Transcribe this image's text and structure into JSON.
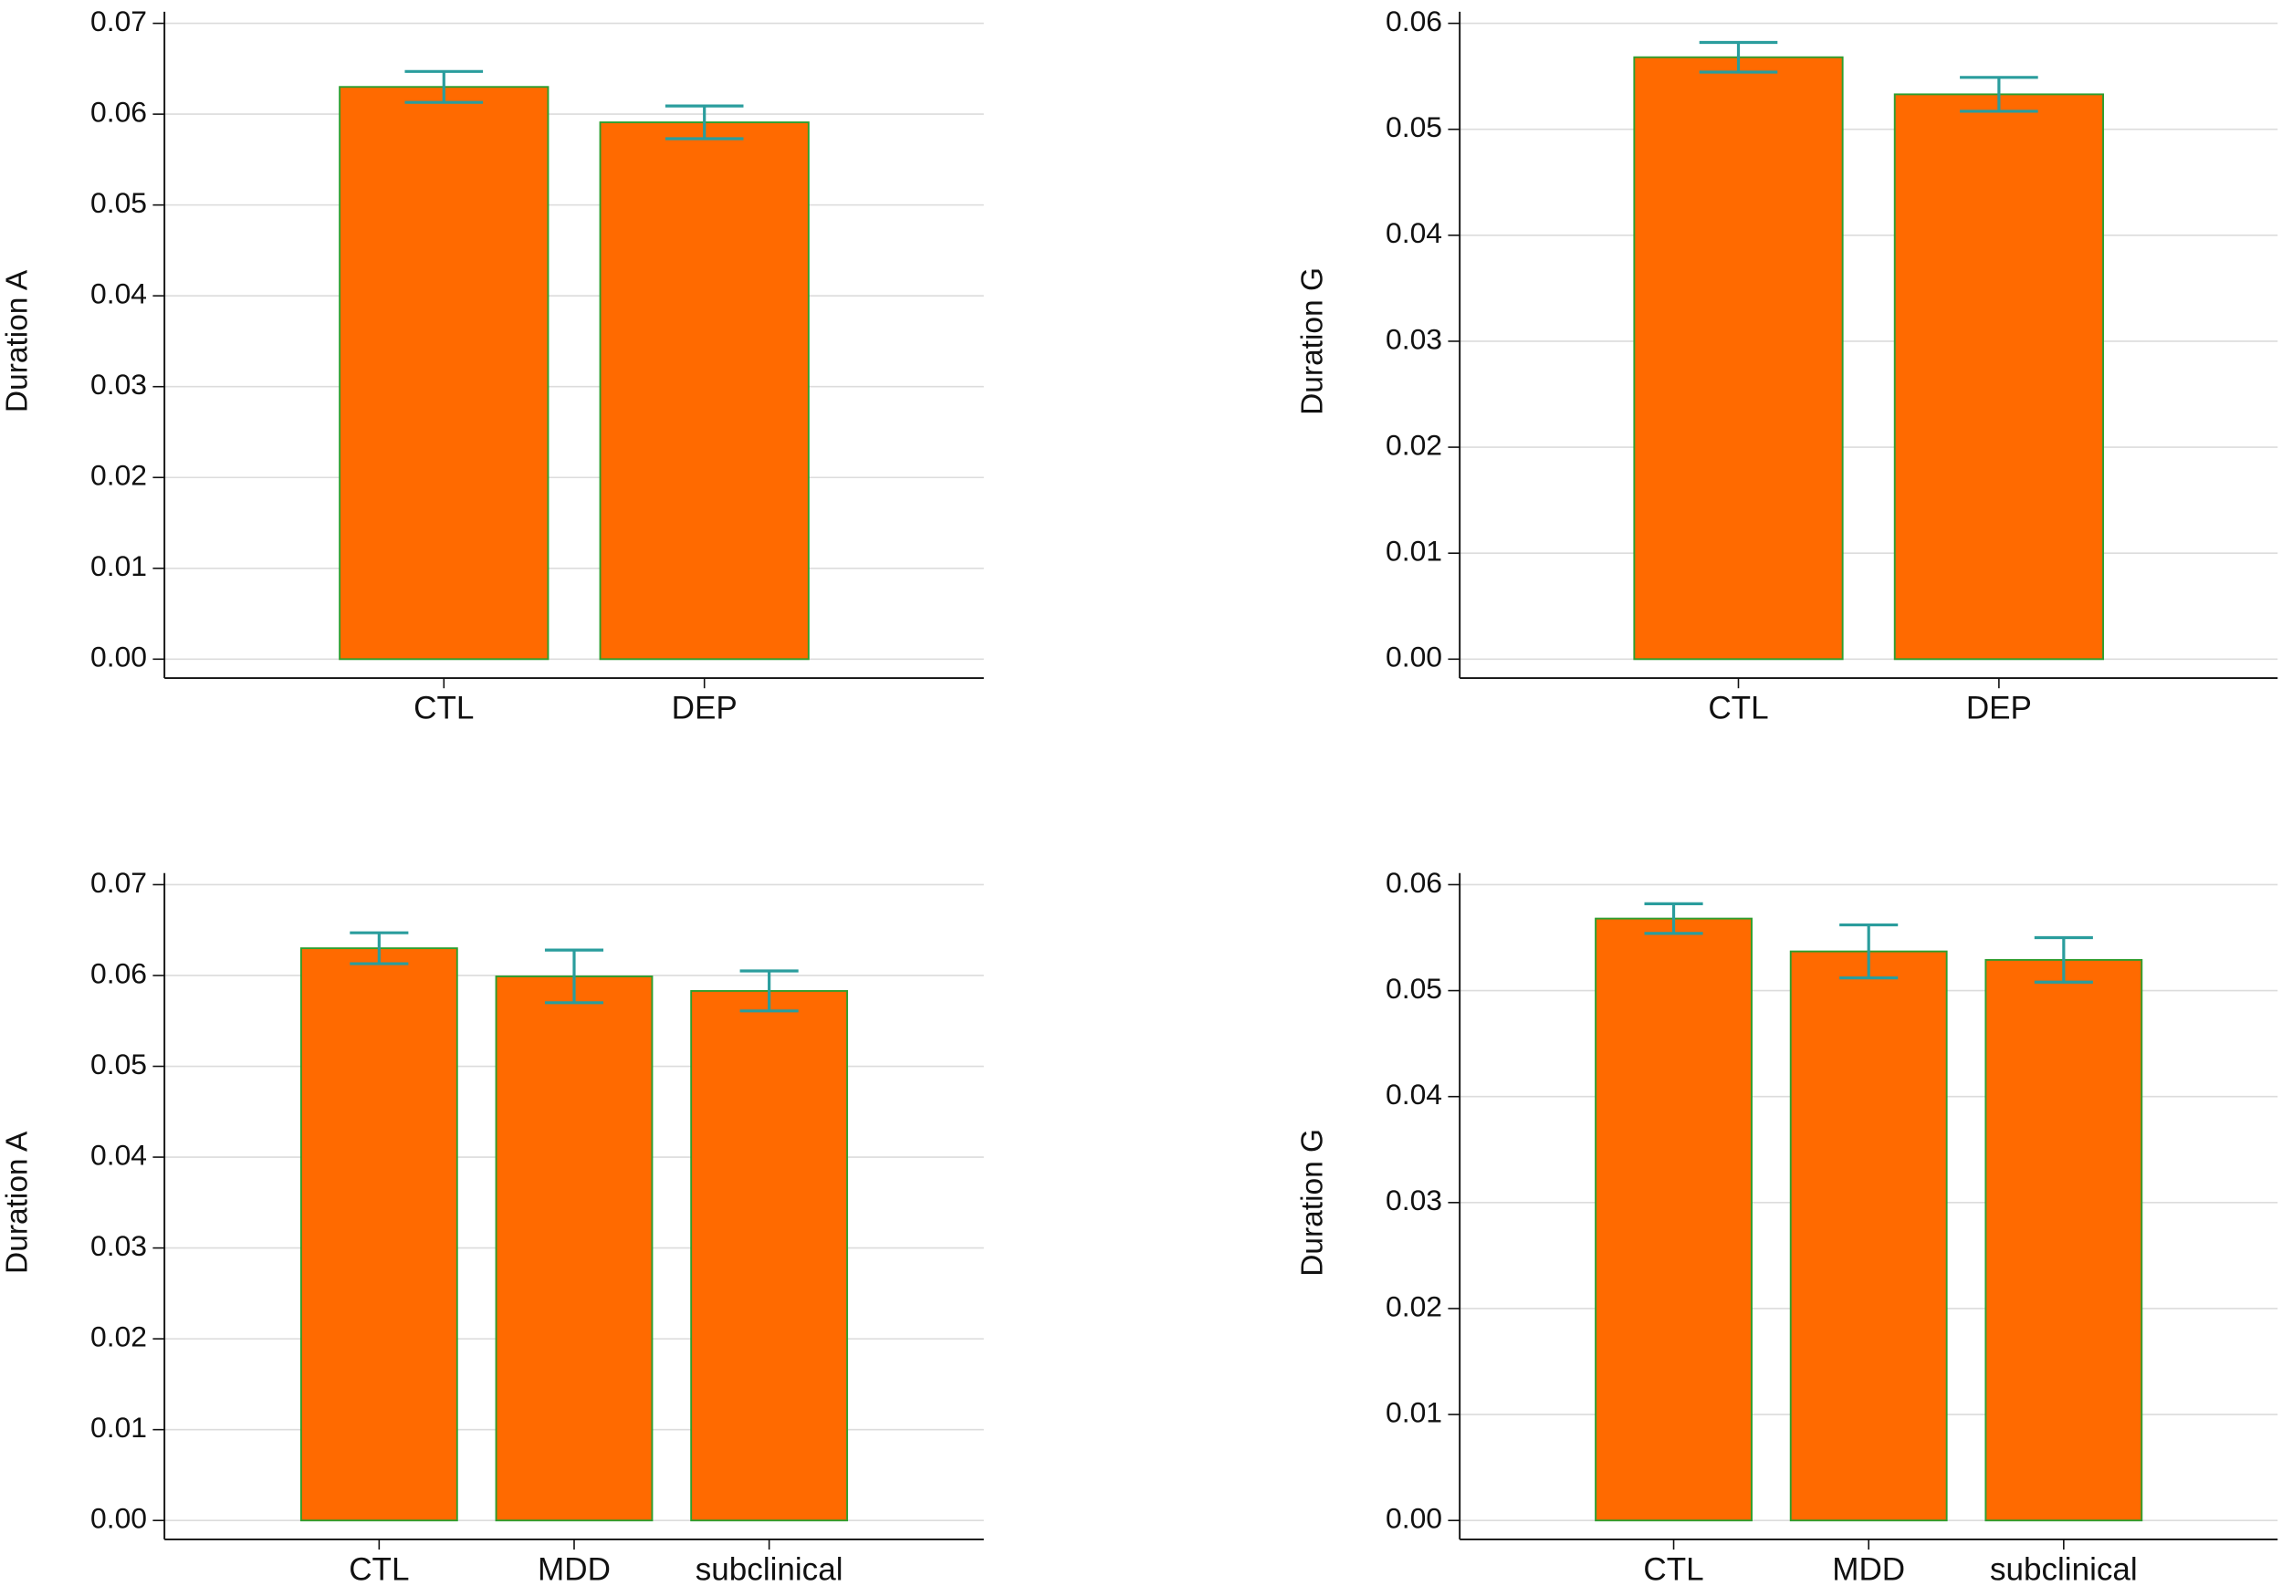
{
  "chart_data": [
    {
      "type": "bar",
      "y_label": "Duration A",
      "categories": [
        "CTL",
        "DEP"
      ],
      "values": [
        0.063,
        0.0591
      ],
      "errors": [
        0.0017,
        0.0018
      ],
      "color": "#ff6a00",
      "edge_color": "#2e9e2e",
      "error_color": "#2a9d9d",
      "ylim": [
        0,
        0.07
      ],
      "yticks": [
        {
          "value": 0,
          "label": "0.00"
        },
        0.01,
        0.02,
        0.03,
        0.04,
        0.05,
        0.06,
        0.07
      ],
      "grid": true
    },
    {
      "type": "bar",
      "y_label": "Duration G",
      "categories": [
        "CTL",
        "DEP"
      ],
      "values": [
        0.0568,
        0.0533
      ],
      "errors": [
        0.0014,
        0.0016
      ],
      "color": "#ff6a00",
      "edge_color": "#2e9e2e",
      "error_color": "#2a9d9d",
      "ylim": [
        0,
        0.06
      ],
      "yticks": [
        {
          "value": 0,
          "label": "0.00"
        },
        0.01,
        0.02,
        0.03,
        0.04,
        0.05,
        0.06
      ],
      "grid": true
    },
    {
      "type": "bar",
      "y_label": "Duration A",
      "categories": [
        "CTL",
        "MDD",
        "subclinical"
      ],
      "values": [
        0.063,
        0.0599,
        0.0583
      ],
      "errors": [
        0.0017,
        0.0029,
        0.0022
      ],
      "color": "#ff6a00",
      "edge_color": "#2e9e2e",
      "error_color": "#2a9d9d",
      "ylim": [
        0,
        0.07
      ],
      "yticks": [
        {
          "value": 0,
          "label": "0.00"
        },
        0.01,
        0.02,
        0.03,
        0.04,
        0.05,
        0.06,
        0.07
      ],
      "grid": true
    },
    {
      "type": "bar",
      "y_label": "Duration G",
      "categories": [
        "CTL",
        "MDD",
        "subclinical"
      ],
      "values": [
        0.0568,
        0.0537,
        0.0529
      ],
      "errors": [
        0.0014,
        0.0025,
        0.0021
      ],
      "color": "#ff6a00",
      "edge_color": "#2e9e2e",
      "error_color": "#2a9d9d",
      "ylim": [
        0,
        0.06
      ],
      "yticks": [
        {
          "value": 0,
          "label": "0.00"
        },
        0.01,
        0.02,
        0.03,
        0.04,
        0.05,
        0.06
      ],
      "grid": true
    }
  ]
}
